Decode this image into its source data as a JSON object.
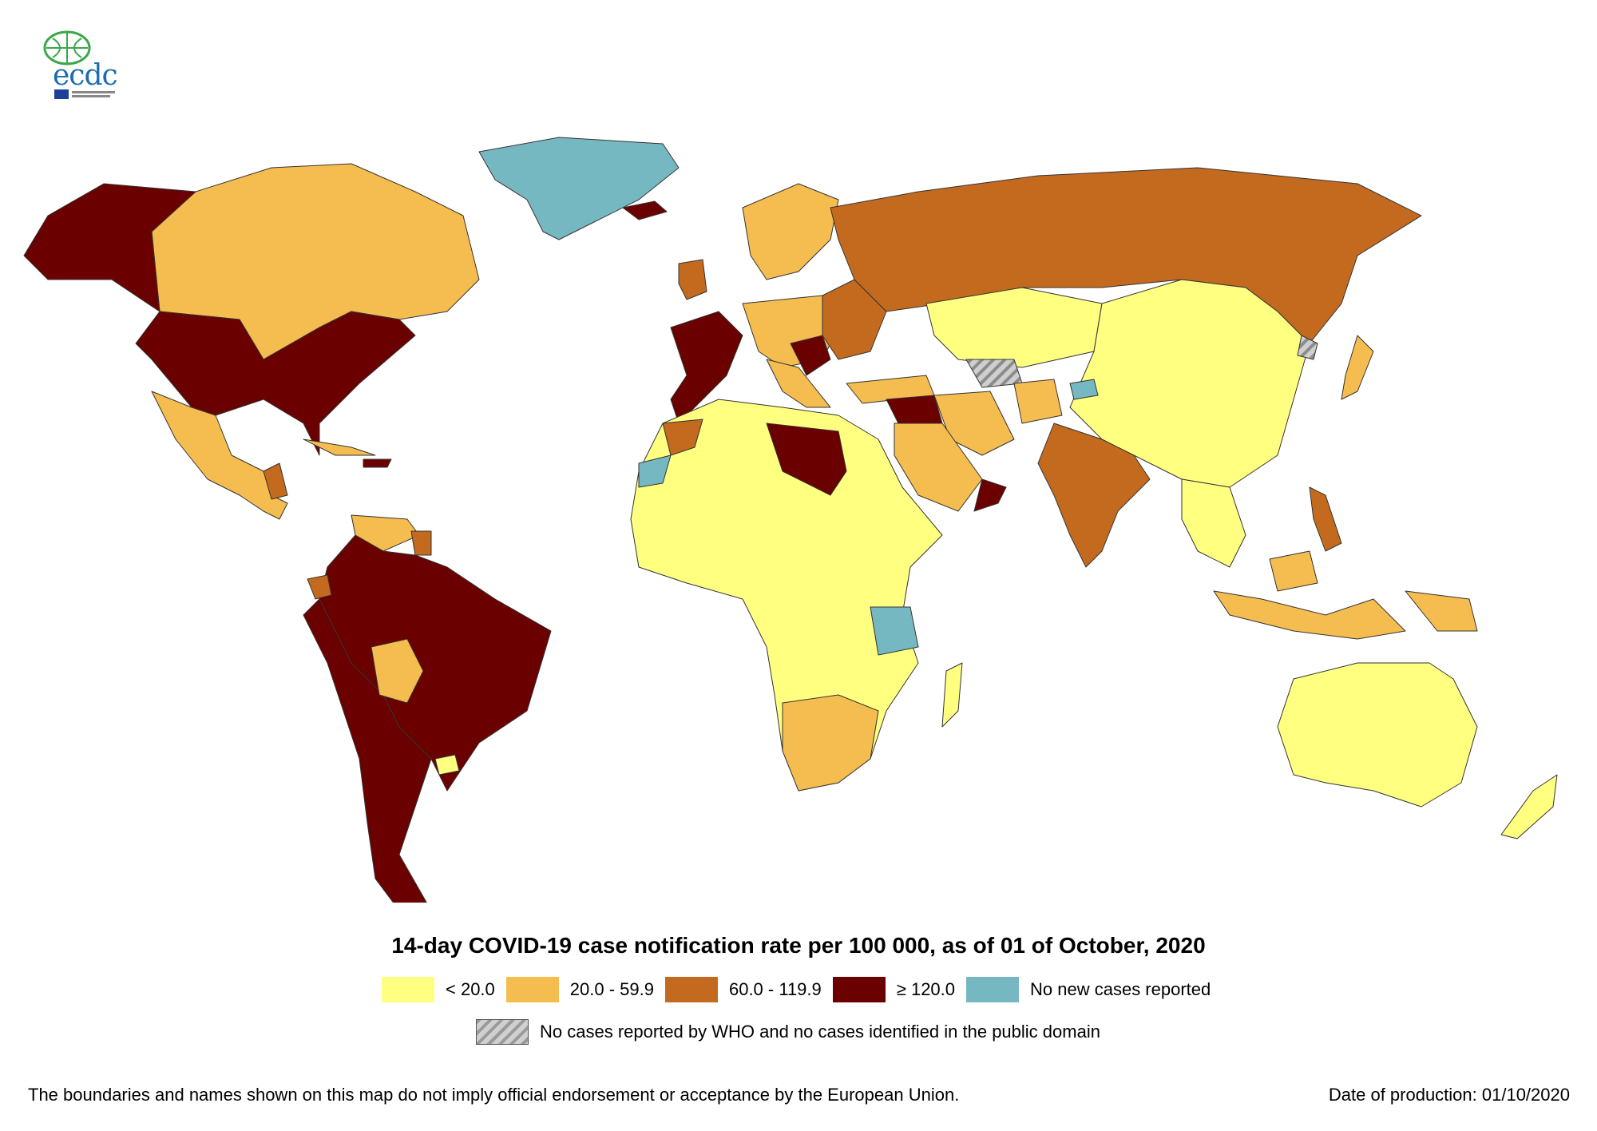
{
  "logo": {
    "text": "ecdc",
    "icon": "globe-logo-icon"
  },
  "title": "14-day COVID-19 case notification rate per 100 000, as of 01 of October, 2020",
  "legend": {
    "classes": [
      {
        "label": "< 20.0",
        "color": "#ffff80"
      },
      {
        "label": "20.0 - 59.9",
        "color": "#f5bd4f"
      },
      {
        "label": "60.0 - 119.9",
        "color": "#c46a1e"
      },
      {
        "label": "≥ 120.0",
        "color": "#6b0000"
      },
      {
        "label": "No new cases reported",
        "color": "#76b8c2"
      }
    ],
    "no_data_label": "No cases reported by WHO and no cases identified in the public domain"
  },
  "disclaimer": "The boundaries and names shown on this map do not imply official endorsement or acceptance by the European Union.",
  "production_date": "Date of production: 01/10/2020"
}
